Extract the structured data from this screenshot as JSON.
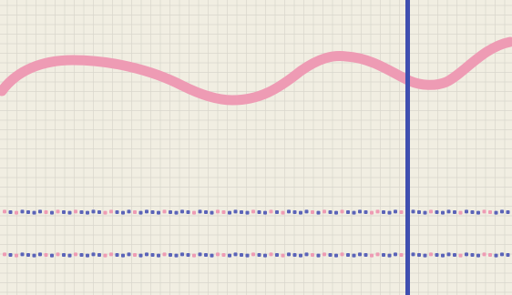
{
  "recording": {
    "paper_color": "#f1eee2",
    "grid_color": "#d9d6cc",
    "waveform_color": "#ee9bb4",
    "marker_color": "#3f4fb0",
    "track_colors": [
      "#5a63b8",
      "#ee9bb4"
    ]
  }
}
